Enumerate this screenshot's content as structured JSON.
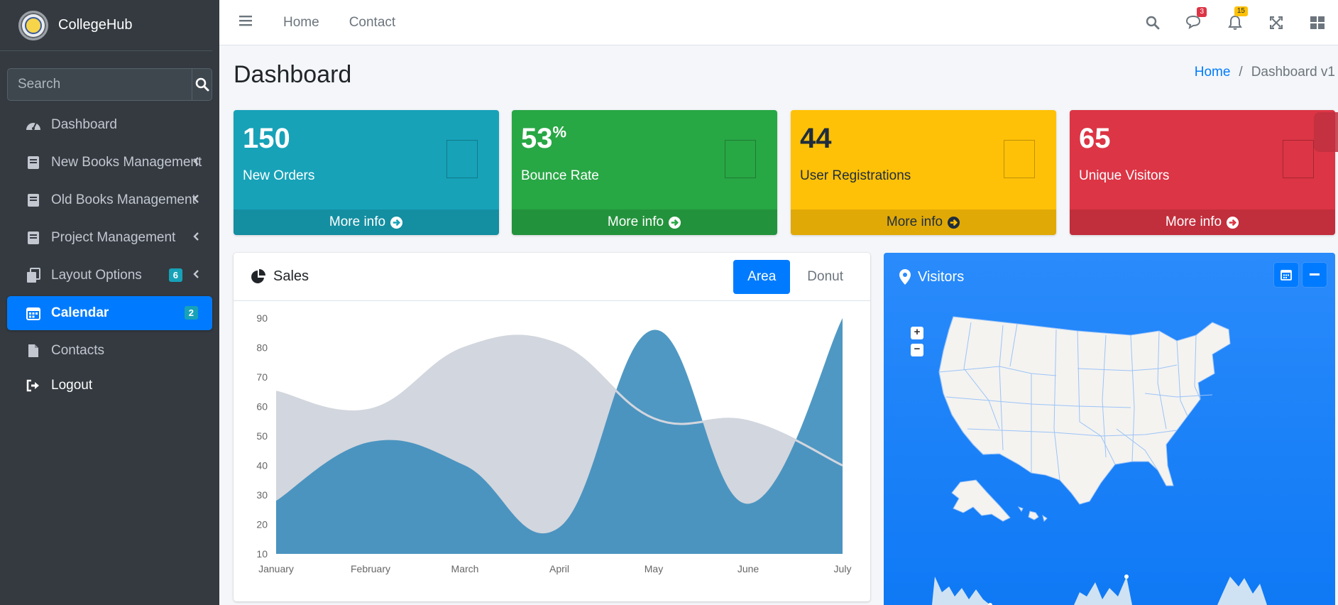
{
  "brand": {
    "name": "CollegeHub"
  },
  "sidebar": {
    "search_placeholder": "Search",
    "items": [
      {
        "label": "Dashboard",
        "icon": "tachometer-icon"
      },
      {
        "label": "New Books Management",
        "icon": "book-icon"
      },
      {
        "label": "Old Books Management",
        "icon": "book-icon"
      },
      {
        "label": "Project Management",
        "icon": "book-icon"
      },
      {
        "label": "Layout Options",
        "icon": "copy-icon",
        "badge": "6"
      },
      {
        "label": "Calendar",
        "icon": "calendar-icon",
        "badge": "2",
        "active": true
      },
      {
        "label": "Contacts",
        "icon": "file-icon"
      },
      {
        "label": "Logout",
        "icon": "sign-out-icon"
      }
    ]
  },
  "topbar": {
    "links": [
      "Home",
      "Contact"
    ],
    "messages_count": "3",
    "notifications_count": "15"
  },
  "header": {
    "title": "Dashboard",
    "breadcrumb": {
      "home": "Home",
      "current": "Dashboard v1"
    }
  },
  "boxes": [
    {
      "value": "150",
      "suffix": "",
      "label": "New Orders",
      "footer": "More info",
      "color": "#17a2b8"
    },
    {
      "value": "53",
      "suffix": "%",
      "label": "Bounce Rate",
      "footer": "More info",
      "color": "#28a745"
    },
    {
      "value": "44",
      "suffix": "",
      "label": "User Registrations",
      "footer": "More info",
      "color": "#ffc107"
    },
    {
      "value": "65",
      "suffix": "",
      "label": "Unique Visitors",
      "footer": "More info",
      "color": "#dc3545"
    }
  ],
  "sales": {
    "title": "Sales",
    "tabs": [
      "Area",
      "Donut"
    ],
    "active_tab": "Area"
  },
  "visitors": {
    "title": "Visitors"
  },
  "chart_data": {
    "type": "area",
    "categories": [
      "January",
      "February",
      "March",
      "April",
      "May",
      "June",
      "July"
    ],
    "series": [
      {
        "values": [
          65,
          59,
          80,
          81,
          56,
          55,
          40
        ],
        "color": "#d2d6de"
      },
      {
        "values": [
          28,
          48,
          40,
          19,
          86,
          27,
          90
        ],
        "color": "#3c8dbc"
      }
    ],
    "ylim": [
      10,
      90
    ],
    "yticks": [
      10,
      20,
      30,
      40,
      50,
      60,
      70,
      80,
      90
    ],
    "xlabel": "",
    "ylabel": ""
  }
}
